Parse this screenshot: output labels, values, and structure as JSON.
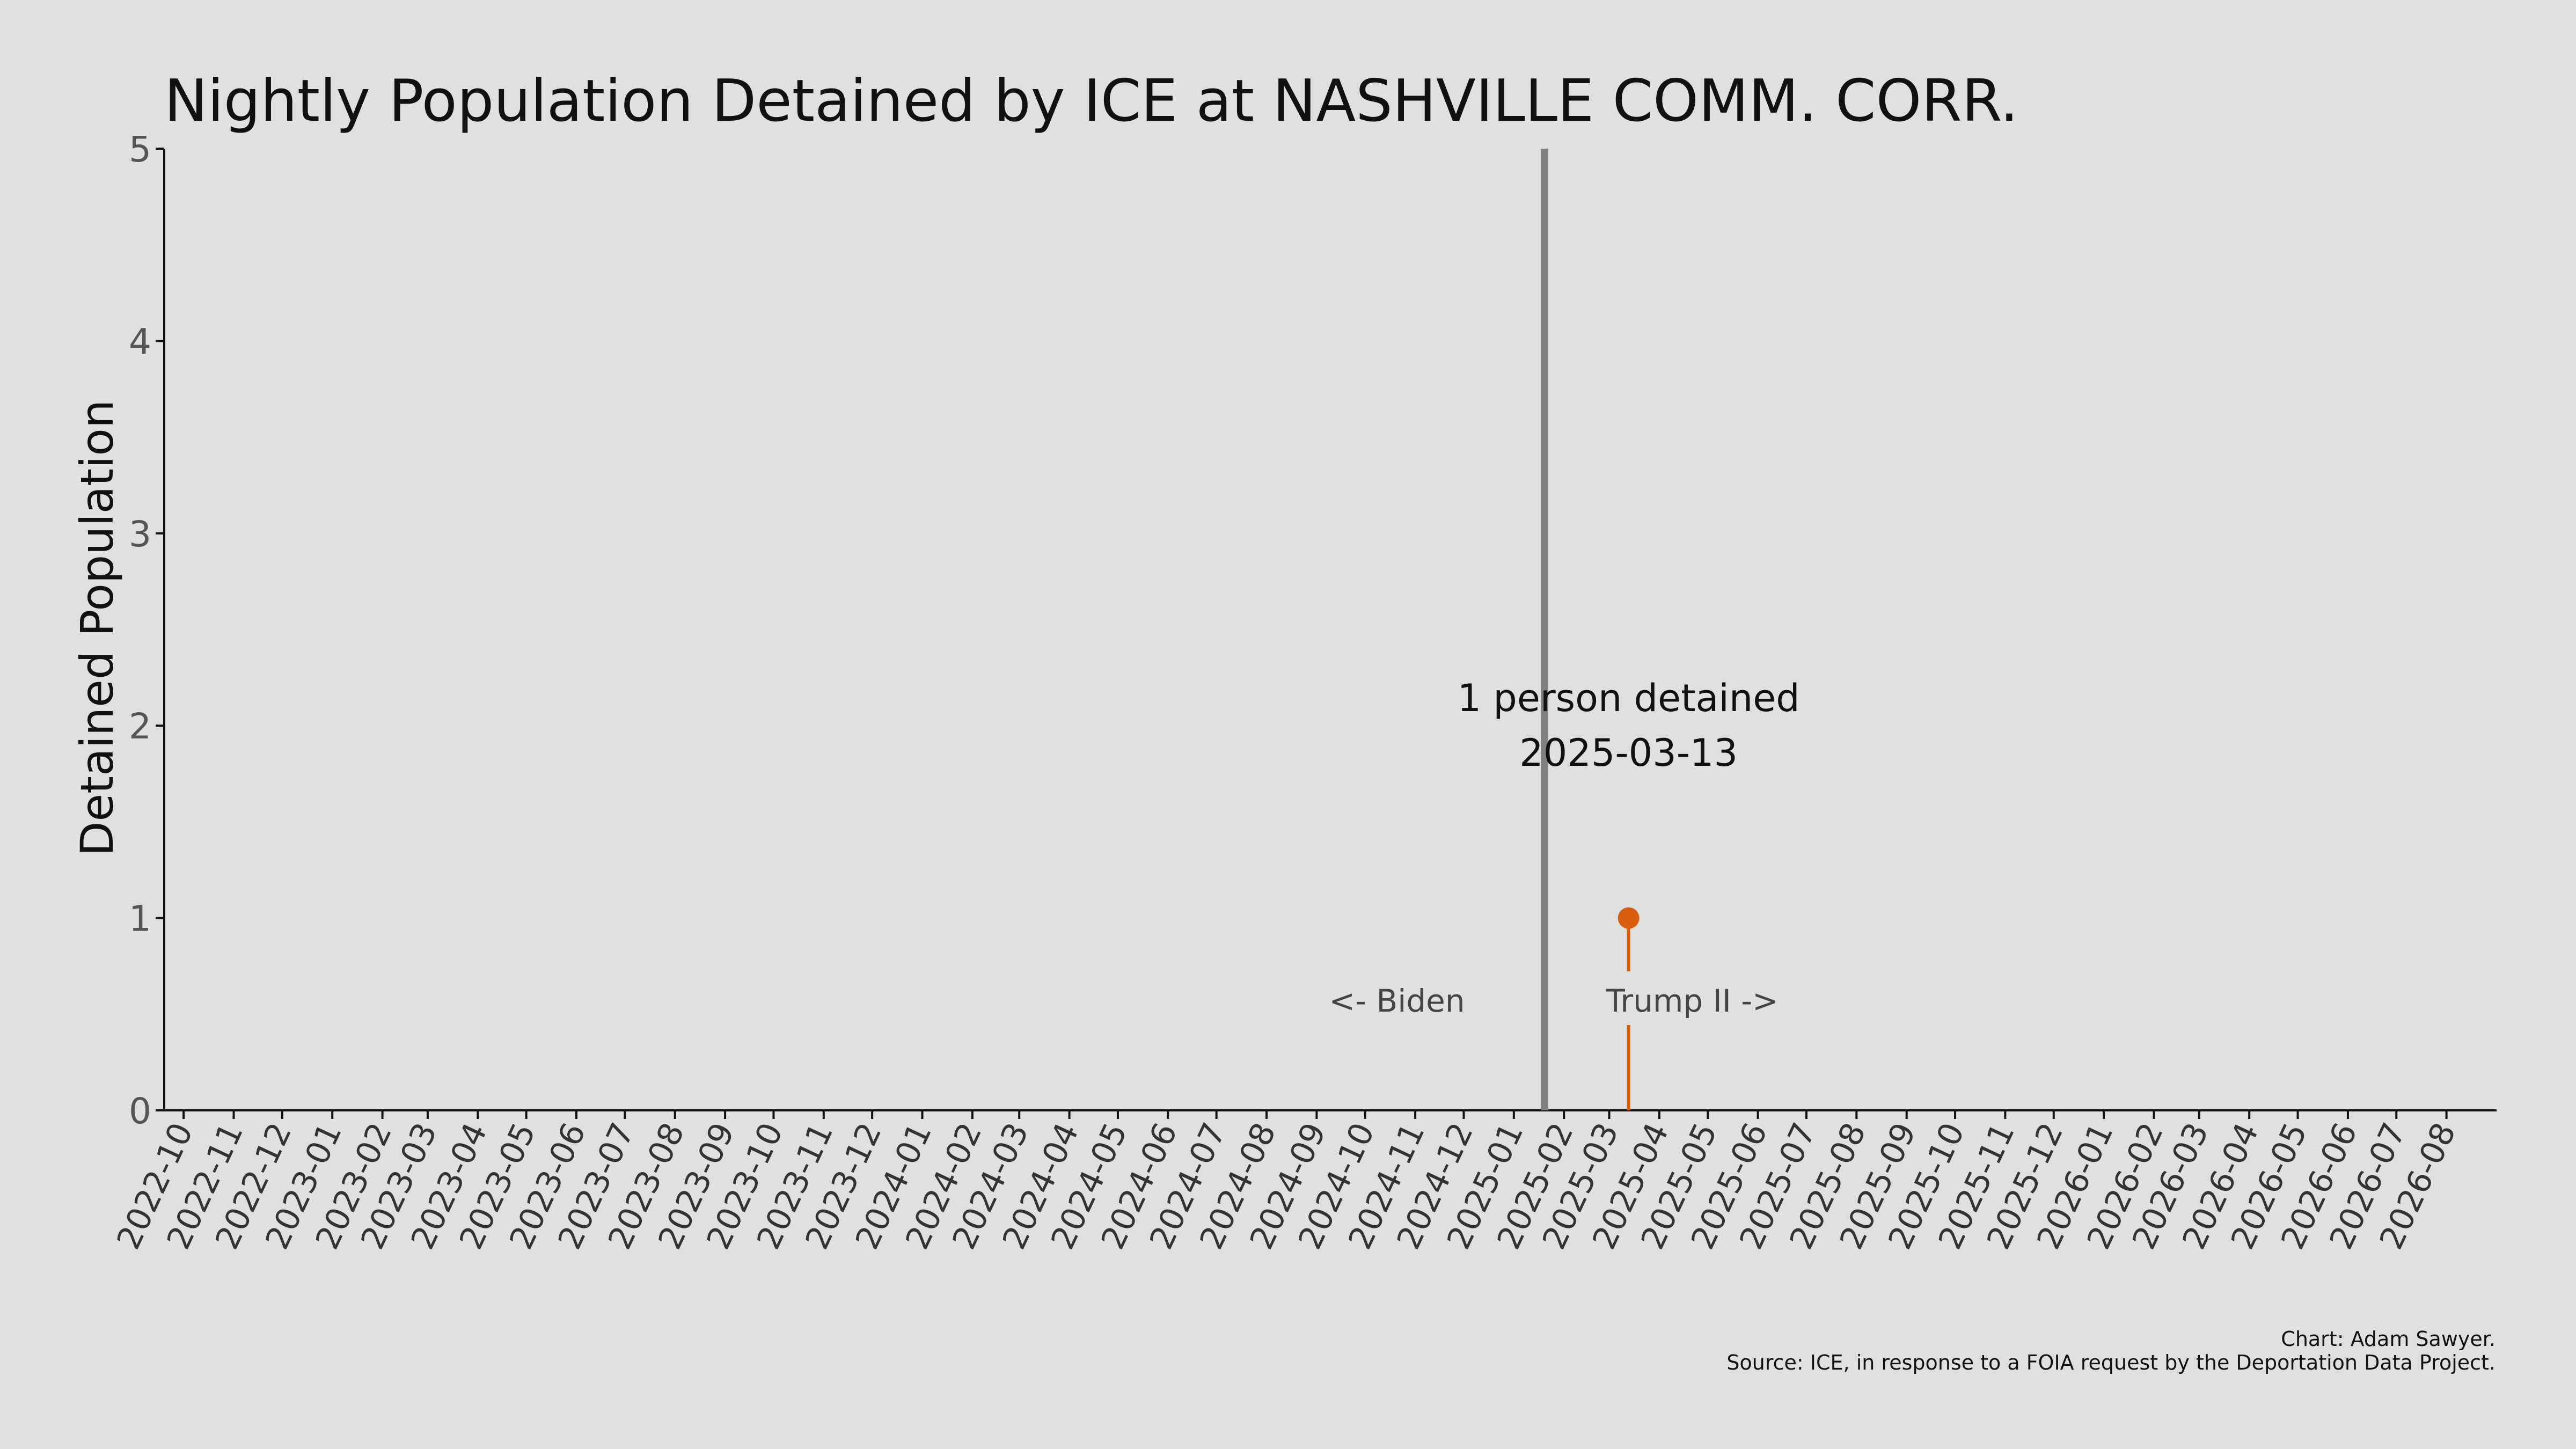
{
  "chart_data": {
    "type": "line",
    "title": "Nightly Population Detained by ICE at NASHVILLE COMM. CORR.",
    "xlabel": "",
    "ylabel": "Detained Population",
    "ylim": [
      0,
      5
    ],
    "yticks": [
      0,
      1,
      2,
      3,
      4,
      5
    ],
    "xlim": [
      "2022-09-19",
      "2026-09-01"
    ],
    "x_tick_labels": [
      "2022-10",
      "2022-11",
      "2022-12",
      "2023-01",
      "2023-02",
      "2023-03",
      "2023-04",
      "2023-05",
      "2023-06",
      "2023-07",
      "2023-08",
      "2023-09",
      "2023-10",
      "2023-11",
      "2023-12",
      "2024-01",
      "2024-02",
      "2024-03",
      "2024-04",
      "2024-05",
      "2024-06",
      "2024-07",
      "2024-08",
      "2024-09",
      "2024-10",
      "2024-11",
      "2024-12",
      "2025-01",
      "2025-02",
      "2025-03",
      "2025-04",
      "2025-05",
      "2025-06",
      "2025-07",
      "2025-08",
      "2025-09",
      "2025-10",
      "2025-11",
      "2025-12",
      "2026-01",
      "2026-02",
      "2026-03",
      "2026-04",
      "2026-05",
      "2026-06",
      "2026-07",
      "2026-08"
    ],
    "grid": false,
    "series": [
      {
        "color": "#d95f0e",
        "points": [
          {
            "x": "2025-03-13",
            "y": 1
          }
        ]
      }
    ],
    "reference_line": {
      "x": "2025-01-20",
      "color": "#808080"
    },
    "annotations": {
      "point_label_line1": "1 person detained",
      "point_label_line2": "2025-03-13",
      "left_label": "<- Biden",
      "right_label": "Trump II ->"
    },
    "credit": "Chart: Adam Sawyer.",
    "source": "Source: ICE, in response to a FOIA request by the Deportation Data Project."
  }
}
